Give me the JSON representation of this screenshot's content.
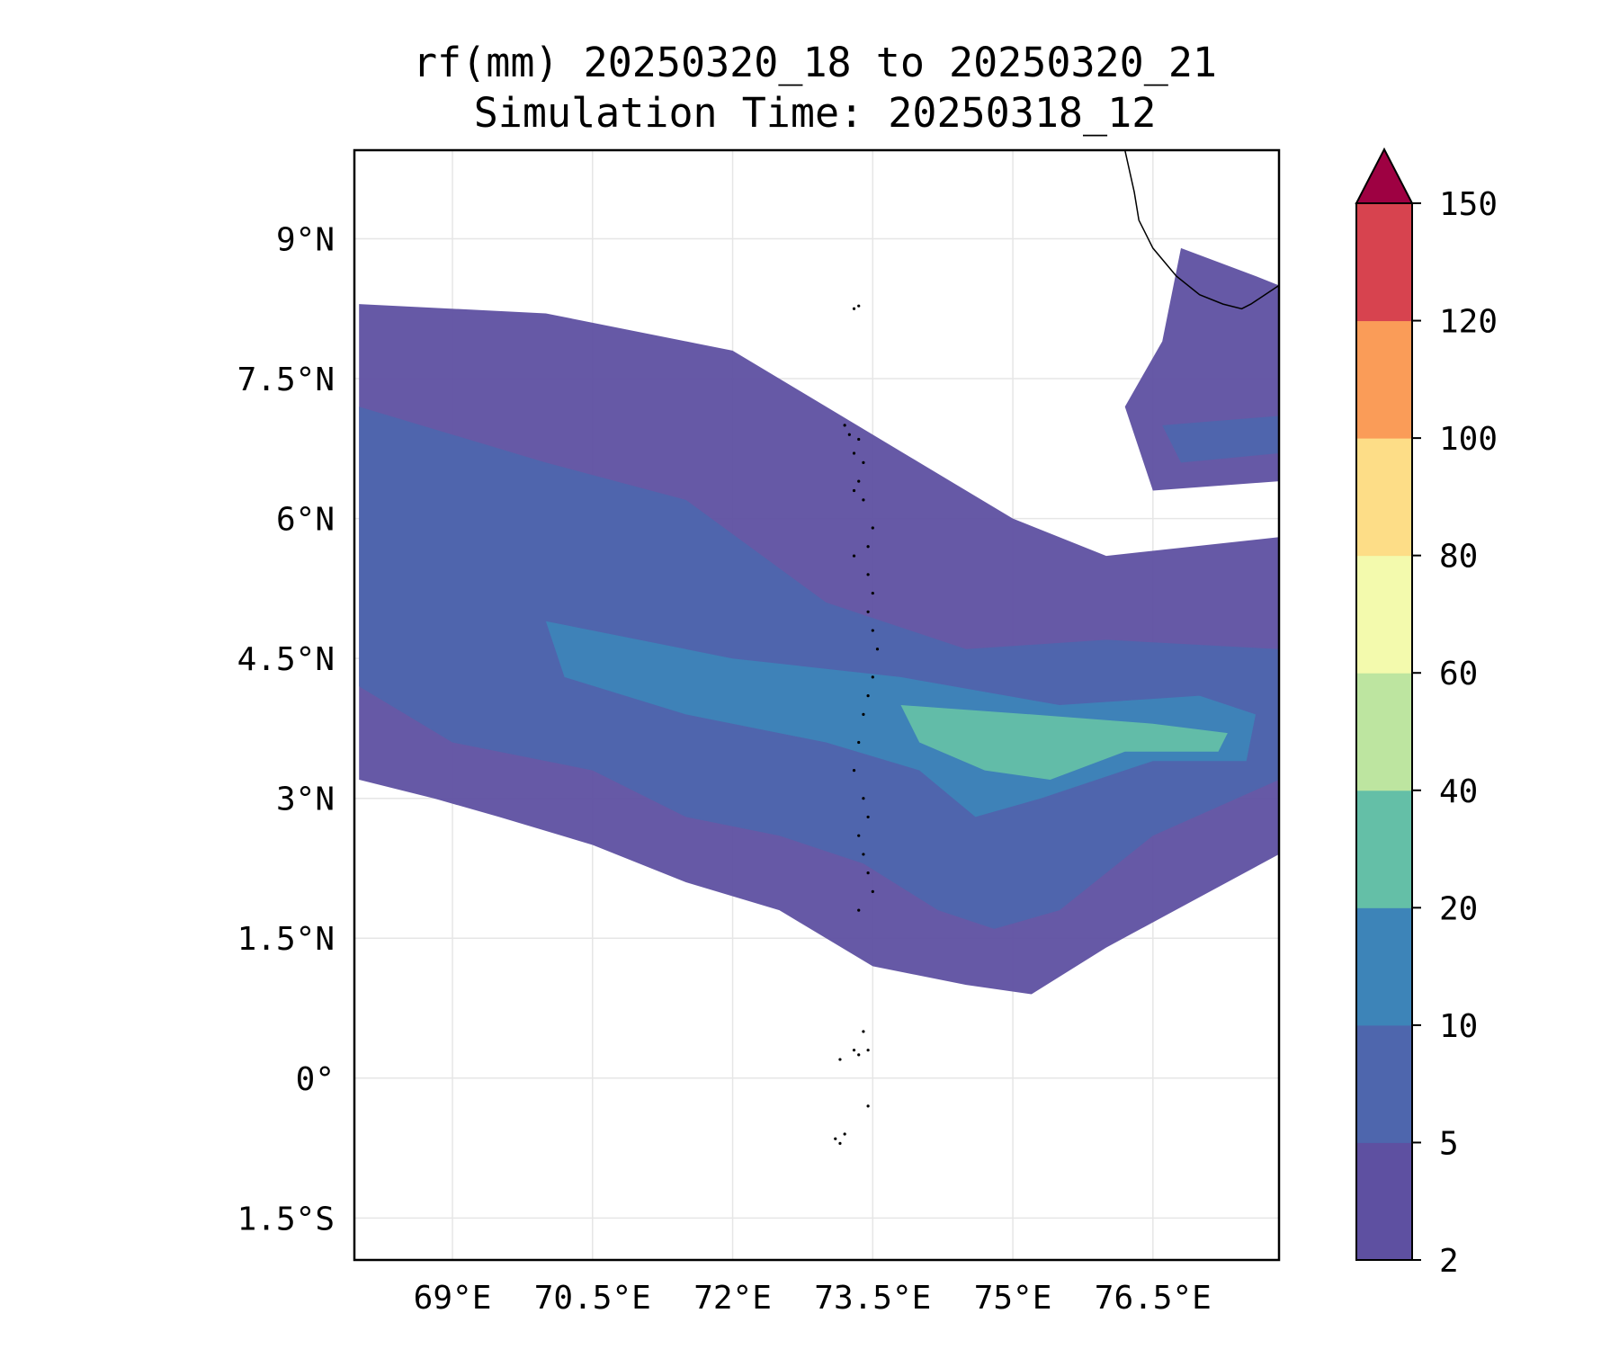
{
  "title_line1": "rf(mm) 20250320_18 to 20250320_21",
  "title_line2": "Simulation Time: 20250318_12",
  "map": {
    "lon_range": [
      67.95,
      77.85
    ],
    "lat_range": [
      -1.95,
      9.95
    ],
    "lon_ticks": [
      {
        "value": 69,
        "label": "69°E"
      },
      {
        "value": 70.5,
        "label": "70.5°E"
      },
      {
        "value": 72,
        "label": "72°E"
      },
      {
        "value": 73.5,
        "label": "73.5°E"
      },
      {
        "value": 75,
        "label": "75°E"
      },
      {
        "value": 76.5,
        "label": "76.5°E"
      }
    ],
    "lat_ticks": [
      {
        "value": 9,
        "label": "9°N"
      },
      {
        "value": 7.5,
        "label": "7.5°N"
      },
      {
        "value": 6,
        "label": "6°N"
      },
      {
        "value": 4.5,
        "label": "4.5°N"
      },
      {
        "value": 3,
        "label": "3°N"
      },
      {
        "value": 1.5,
        "label": "1.5°N"
      },
      {
        "value": 0,
        "label": "0°"
      },
      {
        "value": -1.5,
        "label": "1.5°S"
      }
    ],
    "gridlines": true,
    "coastline_color": "#000000",
    "rain_bands": [
      {
        "level": 1,
        "points": [
          [
            68.0,
            8.3
          ],
          [
            70.0,
            8.2
          ],
          [
            72.0,
            7.8
          ],
          [
            74.0,
            6.6
          ],
          [
            75.0,
            6.0
          ],
          [
            76.0,
            5.6
          ],
          [
            77.85,
            5.8
          ],
          [
            77.85,
            2.4
          ],
          [
            76.0,
            1.4
          ],
          [
            75.2,
            0.9
          ],
          [
            74.5,
            1.0
          ],
          [
            73.5,
            1.2
          ],
          [
            72.5,
            1.8
          ],
          [
            71.5,
            2.1
          ],
          [
            70.5,
            2.5
          ],
          [
            69.5,
            2.8
          ],
          [
            68.8,
            3.0
          ],
          [
            68.0,
            3.2
          ]
        ]
      },
      {
        "level": 1,
        "points": [
          [
            76.8,
            8.9
          ],
          [
            77.6,
            8.6
          ],
          [
            77.85,
            8.5
          ],
          [
            77.85,
            6.4
          ],
          [
            76.5,
            6.3
          ],
          [
            76.2,
            7.2
          ],
          [
            76.6,
            7.9
          ]
        ]
      },
      {
        "level": 2,
        "points": [
          [
            68.0,
            7.2
          ],
          [
            70.0,
            6.6
          ],
          [
            71.5,
            6.2
          ],
          [
            73.0,
            5.1
          ],
          [
            74.5,
            4.6
          ],
          [
            76.0,
            4.7
          ],
          [
            77.85,
            4.6
          ],
          [
            77.85,
            3.2
          ],
          [
            76.5,
            2.6
          ],
          [
            75.5,
            1.8
          ],
          [
            74.8,
            1.6
          ],
          [
            74.2,
            1.8
          ],
          [
            73.4,
            2.3
          ],
          [
            72.5,
            2.6
          ],
          [
            71.5,
            2.8
          ],
          [
            70.5,
            3.3
          ],
          [
            69.0,
            3.6
          ],
          [
            68.0,
            4.2
          ]
        ]
      },
      {
        "level": 2,
        "points": [
          [
            76.6,
            7.0
          ],
          [
            77.85,
            7.1
          ],
          [
            77.85,
            6.7
          ],
          [
            76.8,
            6.6
          ]
        ]
      },
      {
        "level": 3,
        "points": [
          [
            70.0,
            4.9
          ],
          [
            72.0,
            4.5
          ],
          [
            73.8,
            4.3
          ],
          [
            75.5,
            4.0
          ],
          [
            77.0,
            4.1
          ],
          [
            77.6,
            3.9
          ],
          [
            77.5,
            3.4
          ],
          [
            76.5,
            3.4
          ],
          [
            75.3,
            3.0
          ],
          [
            74.6,
            2.8
          ],
          [
            74.0,
            3.3
          ],
          [
            73.0,
            3.6
          ],
          [
            71.5,
            3.9
          ],
          [
            70.2,
            4.3
          ]
        ]
      },
      {
        "level": 4,
        "points": [
          [
            73.8,
            4.0
          ],
          [
            75.2,
            3.9
          ],
          [
            76.5,
            3.8
          ],
          [
            77.3,
            3.7
          ],
          [
            77.2,
            3.5
          ],
          [
            76.2,
            3.5
          ],
          [
            75.4,
            3.2
          ],
          [
            74.7,
            3.3
          ],
          [
            74.0,
            3.6
          ]
        ]
      }
    ],
    "coastline": [
      [
        76.2,
        9.95
      ],
      [
        76.3,
        9.5
      ],
      [
        76.35,
        9.2
      ],
      [
        76.5,
        8.9
      ],
      [
        76.75,
        8.6
      ],
      [
        77.0,
        8.4
      ],
      [
        77.25,
        8.3
      ],
      [
        77.45,
        8.25
      ],
      [
        77.55,
        8.3
      ],
      [
        77.7,
        8.4
      ],
      [
        77.85,
        8.5
      ]
    ],
    "islands": [
      [
        73.3,
        8.25
      ],
      [
        73.35,
        8.28
      ],
      [
        73.2,
        7.0
      ],
      [
        73.25,
        6.9
      ],
      [
        73.35,
        6.85
      ],
      [
        73.3,
        6.7
      ],
      [
        73.4,
        6.6
      ],
      [
        73.35,
        6.4
      ],
      [
        73.3,
        6.3
      ],
      [
        73.4,
        6.2
      ],
      [
        73.5,
        5.9
      ],
      [
        73.45,
        5.7
      ],
      [
        73.3,
        5.6
      ],
      [
        73.45,
        5.4
      ],
      [
        73.5,
        5.2
      ],
      [
        73.45,
        5.0
      ],
      [
        73.5,
        4.8
      ],
      [
        73.55,
        4.6
      ],
      [
        73.5,
        4.3
      ],
      [
        73.45,
        4.1
      ],
      [
        73.4,
        3.9
      ],
      [
        73.35,
        3.6
      ],
      [
        73.3,
        3.3
      ],
      [
        73.4,
        3.0
      ],
      [
        73.45,
        2.8
      ],
      [
        73.35,
        2.6
      ],
      [
        73.4,
        2.4
      ],
      [
        73.45,
        2.2
      ],
      [
        73.5,
        2.0
      ],
      [
        73.35,
        1.8
      ],
      [
        73.4,
        0.5
      ],
      [
        73.3,
        0.3
      ],
      [
        73.15,
        0.2
      ],
      [
        73.35,
        0.25
      ],
      [
        73.45,
        0.3
      ],
      [
        73.45,
        -0.3
      ],
      [
        73.2,
        -0.6
      ],
      [
        73.1,
        -0.65
      ],
      [
        73.15,
        -0.7
      ]
    ]
  },
  "colorbar": {
    "bounds": [
      "2",
      "5",
      "10",
      "20",
      "40",
      "60",
      "80",
      "100",
      "120",
      "150"
    ],
    "colors": [
      "#5e50a1",
      "#4e66ad",
      "#3d84b8",
      "#64bfa7",
      "#bde5a0",
      "#f3faad",
      "#fddd87",
      "#fa9c58",
      "#d7434f"
    ],
    "extend_color": "#9e0142"
  }
}
